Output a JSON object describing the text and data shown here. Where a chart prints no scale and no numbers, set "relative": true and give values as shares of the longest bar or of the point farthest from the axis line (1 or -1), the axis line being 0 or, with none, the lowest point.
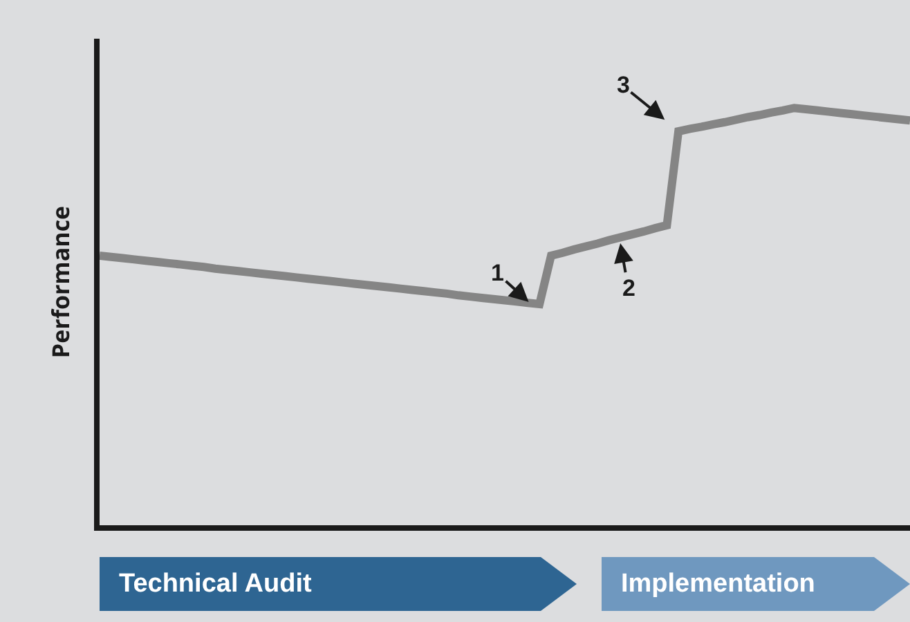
{
  "chart_data": {
    "type": "line",
    "relative": true,
    "ylabel": "Performance",
    "categories": [
      null,
      null,
      null,
      null,
      null,
      null,
      null,
      null,
      null,
      null,
      null,
      null,
      null,
      null,
      null,
      null,
      null,
      null,
      null,
      null,
      null,
      null,
      null,
      null,
      null,
      null,
      null,
      null,
      null,
      null,
      null,
      null,
      null,
      null,
      null,
      null,
      null,
      null,
      null,
      null,
      null,
      null,
      null,
      null,
      null,
      null,
      null,
      null,
      null,
      null,
      null,
      null,
      null,
      null,
      null,
      null,
      null,
      null,
      null,
      null,
      null,
      null,
      null,
      null,
      null,
      null,
      null,
      null,
      null,
      null,
      null
    ],
    "series": [
      {
        "color": "#858585",
        "values": [
          0.646,
          0.643,
          0.64,
          0.637,
          0.634,
          0.631,
          0.628,
          0.625,
          0.622,
          0.619,
          0.615,
          0.612,
          0.609,
          0.606,
          0.603,
          0.6,
          0.597,
          0.594,
          0.591,
          0.588,
          0.585,
          0.582,
          0.579,
          0.576,
          0.573,
          0.57,
          0.567,
          0.564,
          0.561,
          0.558,
          0.555,
          0.551,
          0.548,
          0.545,
          0.542,
          0.539,
          0.536,
          0.533,
          0.53,
          0.646,
          0.653,
          0.661,
          0.668,
          0.675,
          0.683,
          0.69,
          0.697,
          0.704,
          0.712,
          0.719,
          0.944,
          0.95,
          0.955,
          0.961,
          0.966,
          0.972,
          0.978,
          0.983,
          0.989,
          0.994,
          1,
          0.997,
          0.994,
          0.991,
          0.988,
          0.985,
          0.982,
          0.979,
          0.976,
          0.973,
          0.97
        ]
      }
    ],
    "marker": "none",
    "line_style": "solid",
    "annotations": [
      "1",
      "2",
      "3",
      "Technical Audit",
      "Implementation"
    ]
  }
}
